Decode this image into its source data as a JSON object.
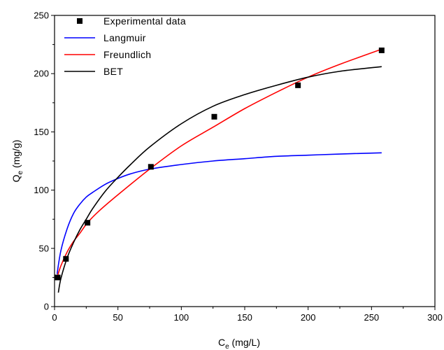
{
  "chart_data": {
    "type": "scatter",
    "title": "",
    "xlabel": {
      "main": "C",
      "sub": "e",
      "unit": " (mg/L)"
    },
    "ylabel": {
      "main": "Q",
      "sub": "e",
      "unit": " (mg/g)"
    },
    "xlim": [
      0,
      300
    ],
    "ylim": [
      0,
      250
    ],
    "xticks": [
      0,
      50,
      100,
      150,
      200,
      250,
      300
    ],
    "yticks": [
      0,
      50,
      100,
      150,
      200,
      250
    ],
    "grid": false,
    "legend_position": "top-left",
    "series": [
      {
        "name": "Experimental data",
        "kind": "scatter",
        "color": "#000000",
        "x": [
          2.5,
          9,
          26,
          76,
          126,
          192,
          258
        ],
        "y": [
          25,
          41,
          72,
          120,
          163,
          190,
          220
        ]
      },
      {
        "name": "Langmuir",
        "kind": "line",
        "color": "#0000ff",
        "x": [
          2,
          5,
          10,
          15,
          20,
          25,
          30,
          40,
          50,
          60,
          75,
          100,
          125,
          150,
          175,
          200,
          225,
          258
        ],
        "y": [
          28,
          48,
          67,
          80,
          88,
          94,
          98,
          105,
          110,
          114,
          118,
          122,
          125,
          127,
          129,
          130,
          131,
          132
        ]
      },
      {
        "name": "Freundlich",
        "kind": "line",
        "color": "#ff0000",
        "x": [
          2,
          5,
          10,
          15,
          20,
          26,
          35,
          50,
          75,
          100,
          125,
          150,
          175,
          200,
          225,
          258
        ],
        "y": [
          25,
          35,
          47,
          56,
          63,
          72,
          82,
          96,
          118,
          138,
          154,
          170,
          184,
          197,
          208,
          221
        ]
      },
      {
        "name": "BET",
        "kind": "line",
        "color": "#000000",
        "x": [
          3,
          5,
          10,
          15,
          20,
          25,
          30,
          40,
          50,
          60,
          75,
          100,
          125,
          150,
          175,
          200,
          225,
          258
        ],
        "y": [
          12,
          24,
          42,
          55,
          66,
          75,
          84,
          99,
          111,
          122,
          137,
          157,
          172,
          182,
          190,
          197,
          202,
          206
        ]
      }
    ]
  }
}
